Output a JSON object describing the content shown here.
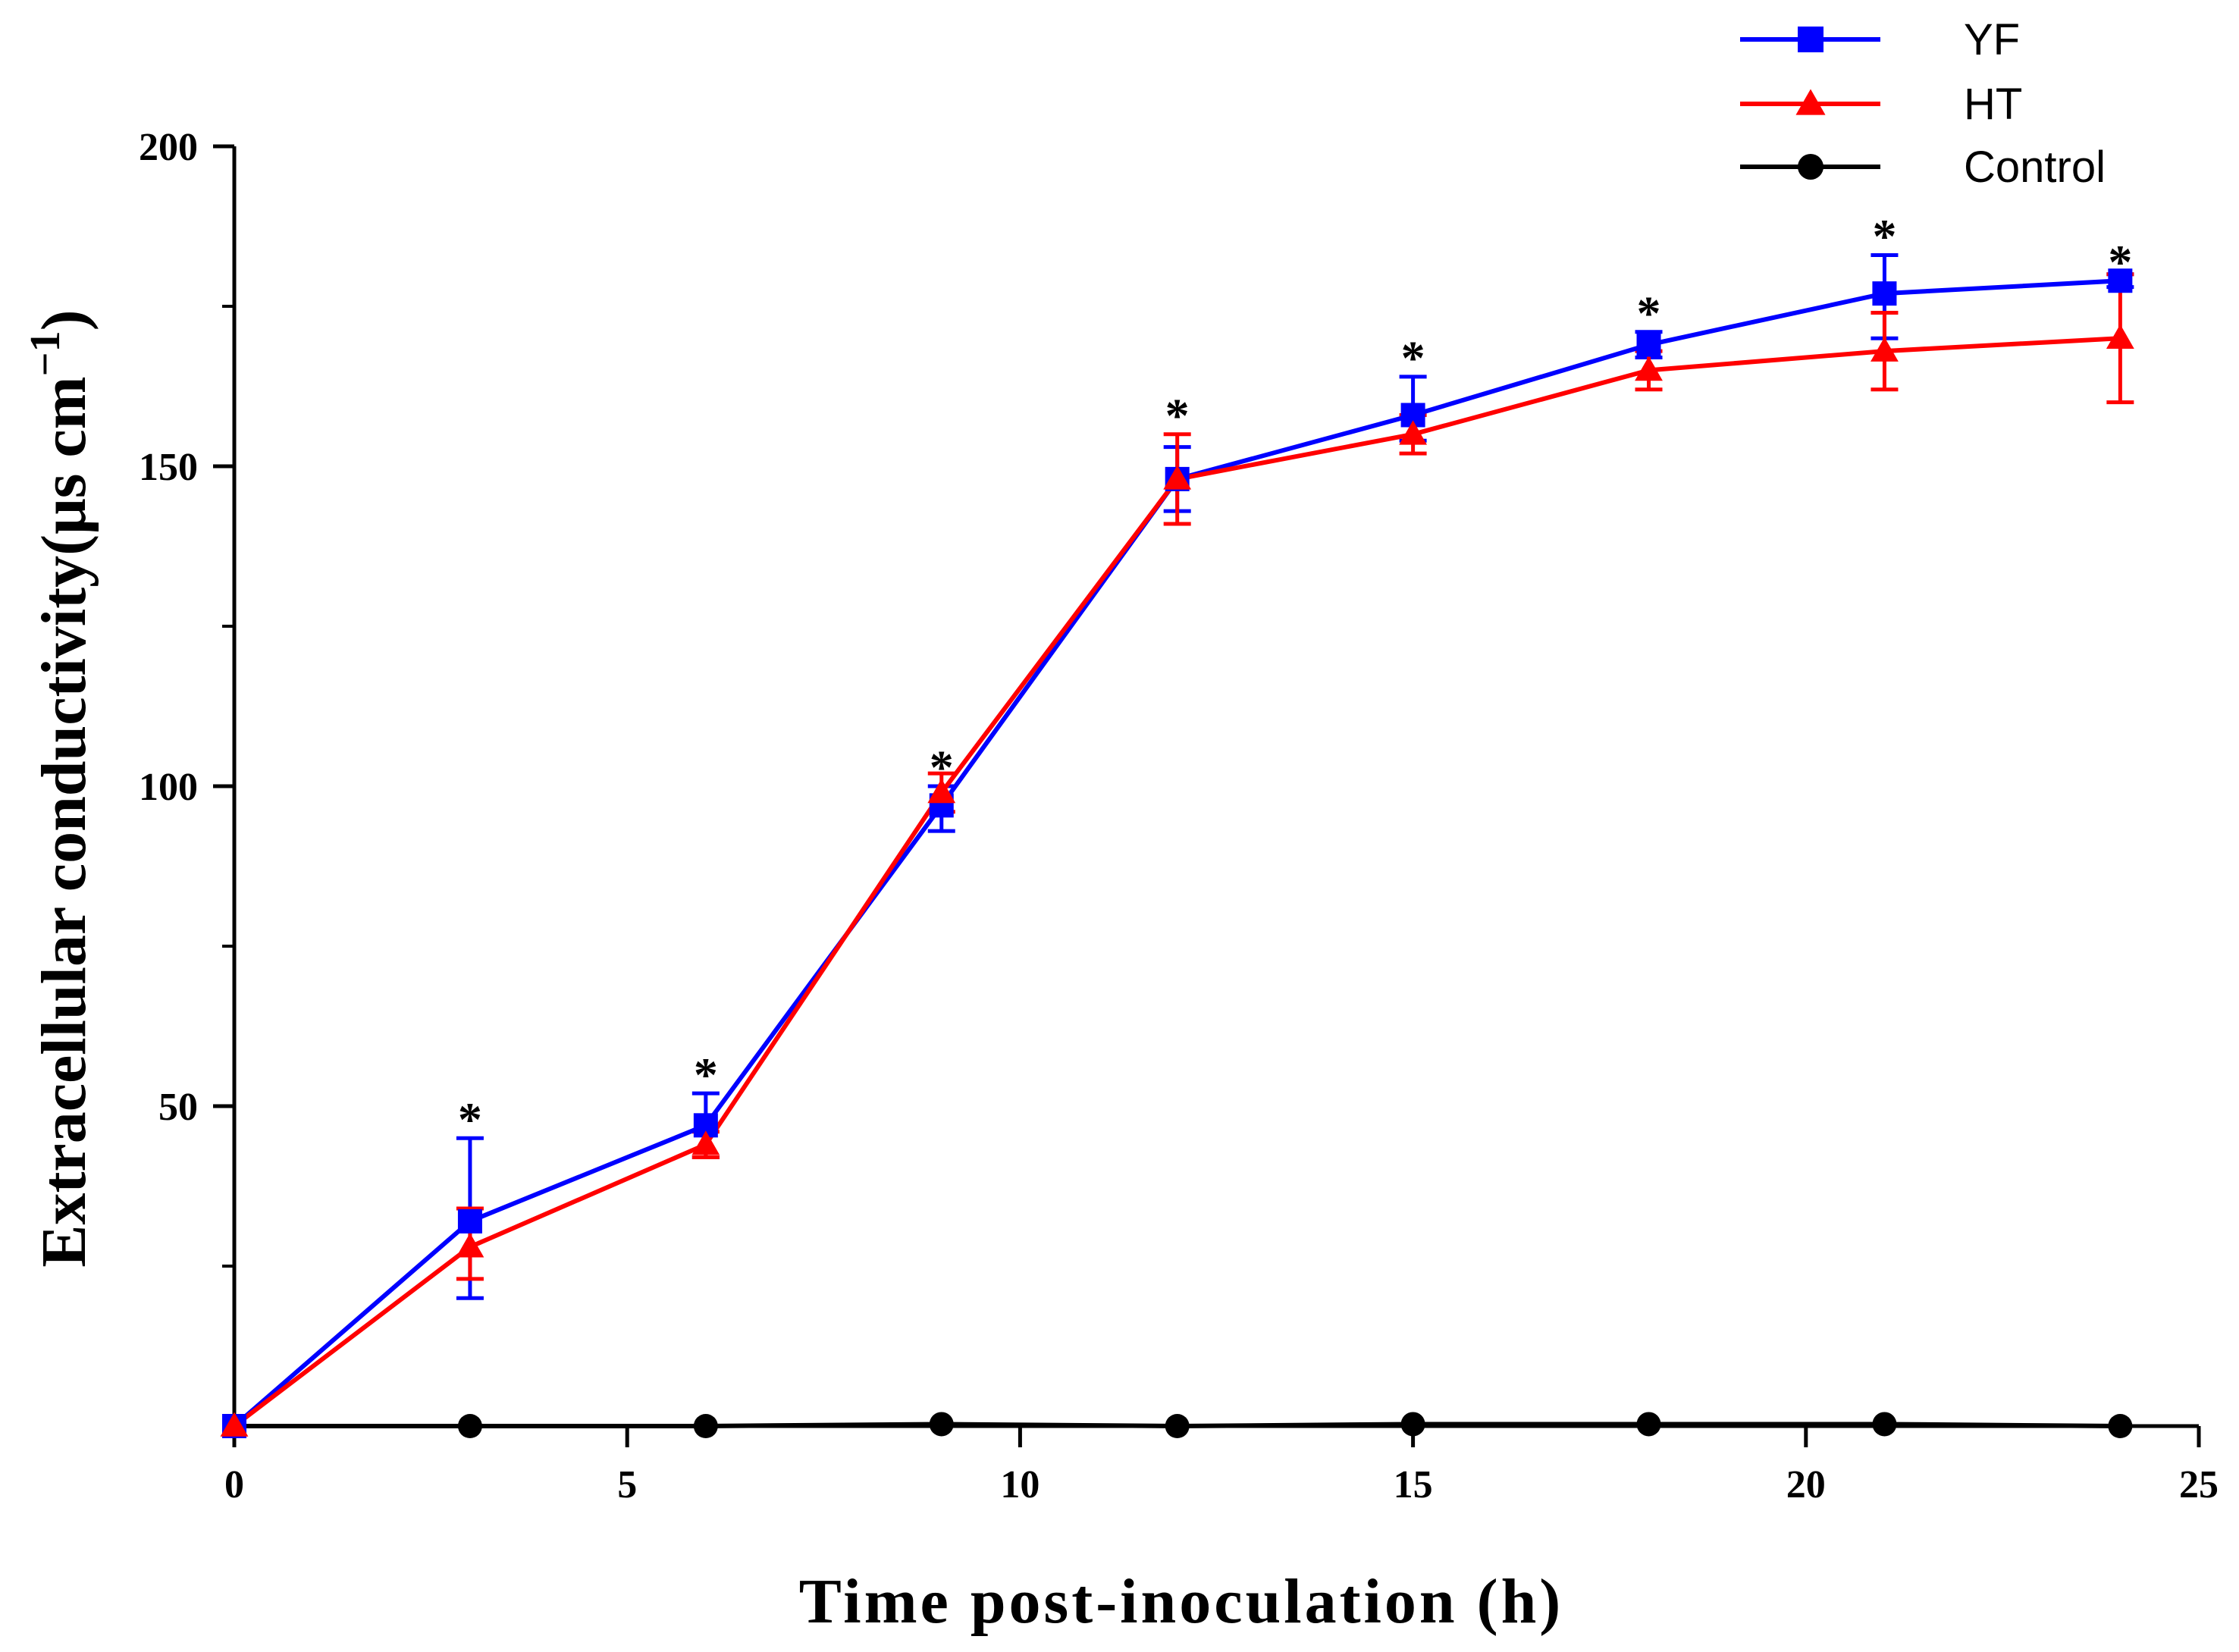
{
  "chart_data": {
    "type": "line",
    "title": "",
    "xlabel": "Time post-inoculation (h)",
    "ylabel": "Extracellular conductivity(μs cm",
    "ylabel_sup": "−1",
    "ylabel_close": ")",
    "xlim": [
      0,
      25
    ],
    "ylim": [
      0,
      200
    ],
    "x_ticks": [
      0,
      5,
      10,
      15,
      20,
      25
    ],
    "y_ticks": [
      50,
      100,
      150,
      200
    ],
    "y_minor_ticks": [
      25,
      75,
      125,
      175
    ],
    "x": [
      0,
      3,
      6,
      9,
      12,
      15,
      18,
      21,
      24
    ],
    "series": [
      {
        "name": "YF",
        "color": "#0000ff",
        "marker": "square",
        "values": [
          0,
          32,
          47,
          97,
          148,
          158,
          169,
          177,
          179
        ],
        "err_up": [
          0,
          13,
          5,
          3,
          5,
          6,
          2,
          6,
          1
        ],
        "err_down": [
          0,
          12,
          5,
          4,
          5,
          4,
          2,
          7,
          1
        ]
      },
      {
        "name": "HT",
        "color": "#ff0000",
        "marker": "triangle",
        "values": [
          0,
          28,
          44,
          99,
          148,
          155,
          165,
          168,
          170
        ],
        "err_up": [
          0,
          6,
          2,
          3,
          7,
          3,
          3,
          6,
          10
        ],
        "err_down": [
          0,
          5,
          2,
          3,
          7,
          3,
          3,
          6,
          10
        ]
      },
      {
        "name": "Control",
        "color": "#000000",
        "marker": "circle",
        "values": [
          0,
          0,
          0,
          0.3,
          0,
          0.3,
          0.3,
          0.3,
          0
        ],
        "err_up": [
          0,
          0,
          0,
          0,
          0,
          0,
          0,
          0,
          0
        ],
        "err_down": [
          0,
          0,
          0,
          0,
          0,
          0,
          0,
          0,
          0
        ]
      }
    ],
    "annotations": [
      {
        "x": 3,
        "y": 48,
        "text": "*"
      },
      {
        "x": 6,
        "y": 55,
        "text": "*"
      },
      {
        "x": 9,
        "y": 103,
        "text": "*"
      },
      {
        "x": 12,
        "y": 158,
        "text": "*"
      },
      {
        "x": 15,
        "y": 167,
        "text": "*"
      },
      {
        "x": 18,
        "y": 174,
        "text": "*"
      },
      {
        "x": 21,
        "y": 186,
        "text": "*"
      },
      {
        "x": 24,
        "y": 182,
        "text": "*"
      }
    ],
    "legend_position": "top-right",
    "grid": false
  }
}
